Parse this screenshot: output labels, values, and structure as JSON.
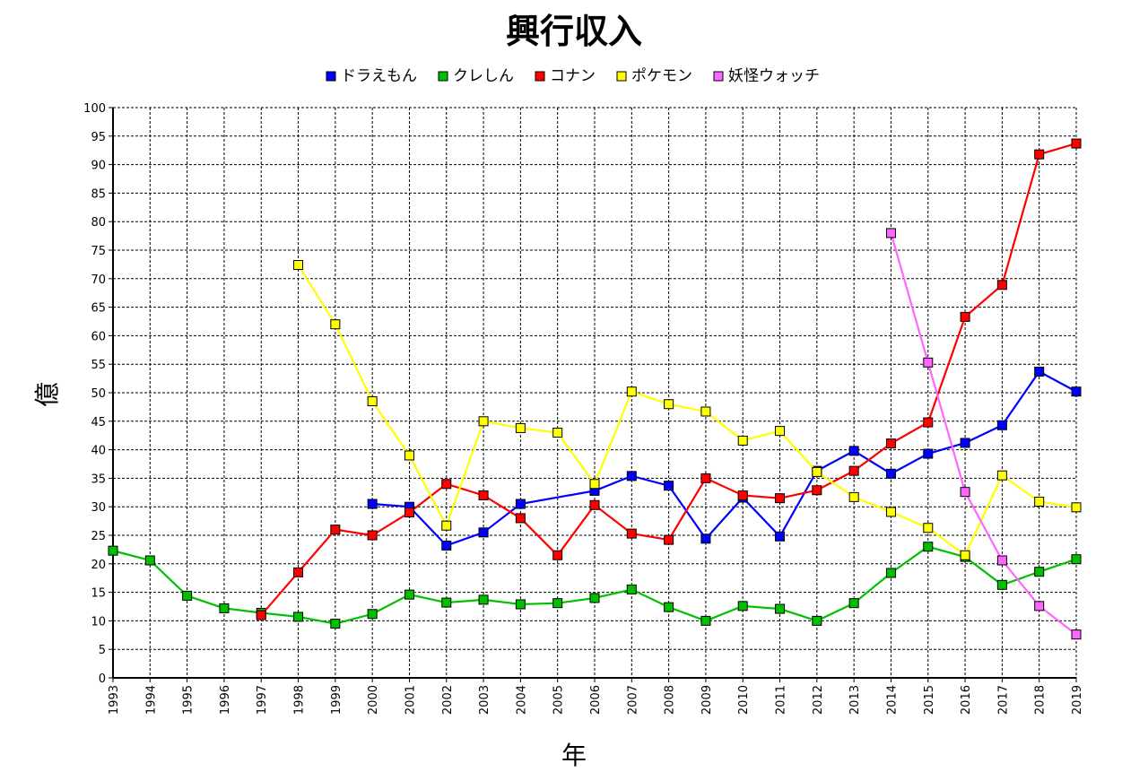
{
  "chart_data": {
    "type": "line",
    "title": "興行収入",
    "xlabel": "年",
    "ylabel": "億",
    "xlim": [
      1993,
      2019
    ],
    "ylim": [
      0,
      100
    ],
    "y_ticks": [
      0,
      5,
      10,
      15,
      20,
      25,
      30,
      35,
      40,
      45,
      50,
      55,
      60,
      65,
      70,
      75,
      80,
      85,
      90,
      95,
      100
    ],
    "x_ticks": [
      1993,
      1994,
      1995,
      1996,
      1997,
      1998,
      1999,
      2000,
      2001,
      2002,
      2003,
      2004,
      2005,
      2006,
      2007,
      2008,
      2009,
      2010,
      2011,
      2012,
      2013,
      2014,
      2015,
      2016,
      2017,
      2018,
      2019
    ],
    "grid": true,
    "legend_position": "top",
    "series": [
      {
        "name": "ドラえもん",
        "color": "#0000ff",
        "points": [
          [
            2000,
            30.5
          ],
          [
            2001,
            30.0
          ],
          [
            2002,
            23.2
          ],
          [
            2003,
            25.5
          ],
          [
            2004,
            30.5
          ],
          [
            2006,
            32.8
          ],
          [
            2007,
            35.4
          ],
          [
            2008,
            33.7
          ],
          [
            2009,
            24.4
          ],
          [
            2010,
            31.6
          ],
          [
            2011,
            24.8
          ],
          [
            2012,
            36.3
          ],
          [
            2013,
            39.8
          ],
          [
            2014,
            35.8
          ],
          [
            2015,
            39.3
          ],
          [
            2016,
            41.2
          ],
          [
            2017,
            44.3
          ],
          [
            2018,
            53.7
          ],
          [
            2019,
            50.2
          ]
        ]
      },
      {
        "name": "クレしん",
        "color": "#00c000",
        "points": [
          [
            1993,
            22.3
          ],
          [
            1994,
            20.6
          ],
          [
            1995,
            14.4
          ],
          [
            1996,
            12.2
          ],
          [
            1997,
            11.4
          ],
          [
            1998,
            10.7
          ],
          [
            1999,
            9.5
          ],
          [
            2000,
            11.2
          ],
          [
            2001,
            14.6
          ],
          [
            2002,
            13.2
          ],
          [
            2003,
            13.7
          ],
          [
            2004,
            12.9
          ],
          [
            2005,
            13.1
          ],
          [
            2006,
            14.0
          ],
          [
            2007,
            15.5
          ],
          [
            2008,
            12.4
          ],
          [
            2009,
            10.0
          ],
          [
            2010,
            12.6
          ],
          [
            2011,
            12.1
          ],
          [
            2012,
            10.0
          ],
          [
            2013,
            13.1
          ],
          [
            2014,
            18.4
          ],
          [
            2015,
            23.0
          ],
          [
            2016,
            21.2
          ],
          [
            2017,
            16.3
          ],
          [
            2018,
            18.6
          ],
          [
            2019,
            20.8
          ]
        ]
      },
      {
        "name": "コナン",
        "color": "#ff0000",
        "points": [
          [
            1997,
            11.0
          ],
          [
            1998,
            18.5
          ],
          [
            1999,
            26.0
          ],
          [
            2000,
            25.0
          ],
          [
            2001,
            29.0
          ],
          [
            2002,
            34.0
          ],
          [
            2003,
            32.0
          ],
          [
            2004,
            28.0
          ],
          [
            2005,
            21.5
          ],
          [
            2006,
            30.3
          ],
          [
            2007,
            25.3
          ],
          [
            2008,
            24.2
          ],
          [
            2009,
            35.0
          ],
          [
            2010,
            32.0
          ],
          [
            2011,
            31.5
          ],
          [
            2012,
            32.9
          ],
          [
            2013,
            36.3
          ],
          [
            2014,
            41.1
          ],
          [
            2015,
            44.8
          ],
          [
            2016,
            63.3
          ],
          [
            2017,
            68.9
          ],
          [
            2018,
            91.8
          ],
          [
            2019,
            93.7
          ]
        ]
      },
      {
        "name": "ポケモン",
        "color": "#ffff00",
        "points": [
          [
            1998,
            72.4
          ],
          [
            1999,
            62.0
          ],
          [
            2000,
            48.5
          ],
          [
            2001,
            39.0
          ],
          [
            2002,
            26.7
          ],
          [
            2003,
            45.0
          ],
          [
            2004,
            43.8
          ],
          [
            2005,
            43.0
          ],
          [
            2006,
            34.0
          ],
          [
            2007,
            50.2
          ],
          [
            2008,
            48.0
          ],
          [
            2009,
            46.7
          ],
          [
            2010,
            41.6
          ],
          [
            2011,
            43.3
          ],
          [
            2012,
            36.1
          ],
          [
            2013,
            31.7
          ],
          [
            2014,
            29.1
          ],
          [
            2015,
            26.3
          ],
          [
            2016,
            21.5
          ],
          [
            2017,
            35.5
          ],
          [
            2018,
            30.9
          ],
          [
            2019,
            29.9
          ]
        ]
      },
      {
        "name": "妖怪ウォッチ",
        "color": "#ff66ff",
        "points": [
          [
            2014,
            78.0
          ],
          [
            2015,
            55.3
          ],
          [
            2016,
            32.6
          ],
          [
            2017,
            20.6
          ],
          [
            2018,
            12.6
          ],
          [
            2019,
            7.6
          ]
        ]
      }
    ]
  }
}
